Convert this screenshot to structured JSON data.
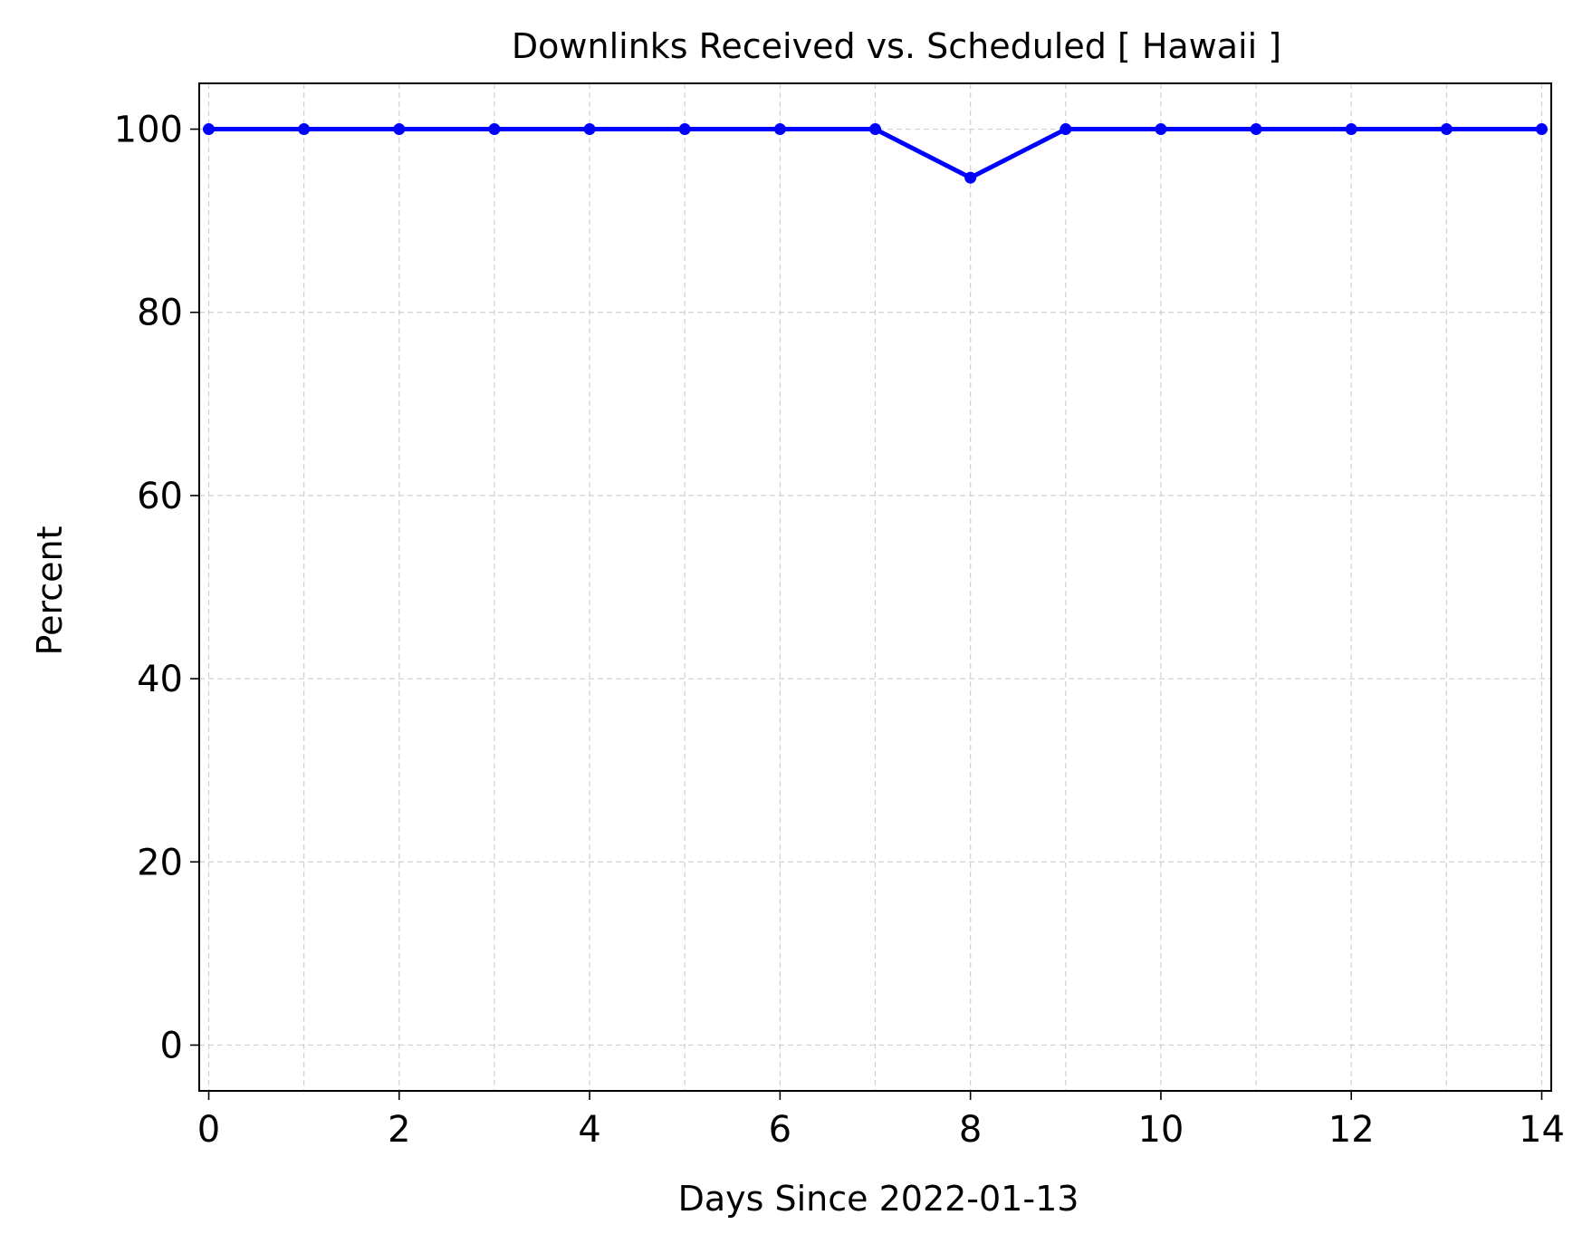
{
  "chart_data": {
    "type": "line",
    "title": "Downlinks Received vs. Scheduled [ Hawaii ]",
    "xlabel": "Days Since 2022-01-13",
    "ylabel": "Percent",
    "xlim": [
      -0.1,
      14.1
    ],
    "ylim": [
      -5,
      105
    ],
    "xticks": [
      0,
      2,
      4,
      6,
      8,
      10,
      12,
      14
    ],
    "yticks": [
      0,
      20,
      40,
      60,
      80,
      100
    ],
    "grid": true,
    "series": [
      {
        "color": "#0000ff",
        "x": [
          0,
          1,
          2,
          3,
          4,
          5,
          6,
          7,
          8,
          9,
          10,
          11,
          12,
          13,
          14
        ],
        "y": [
          100,
          100,
          100,
          100,
          100,
          100,
          100,
          100,
          94.7,
          100,
          100,
          100,
          100,
          100,
          100
        ]
      }
    ]
  }
}
